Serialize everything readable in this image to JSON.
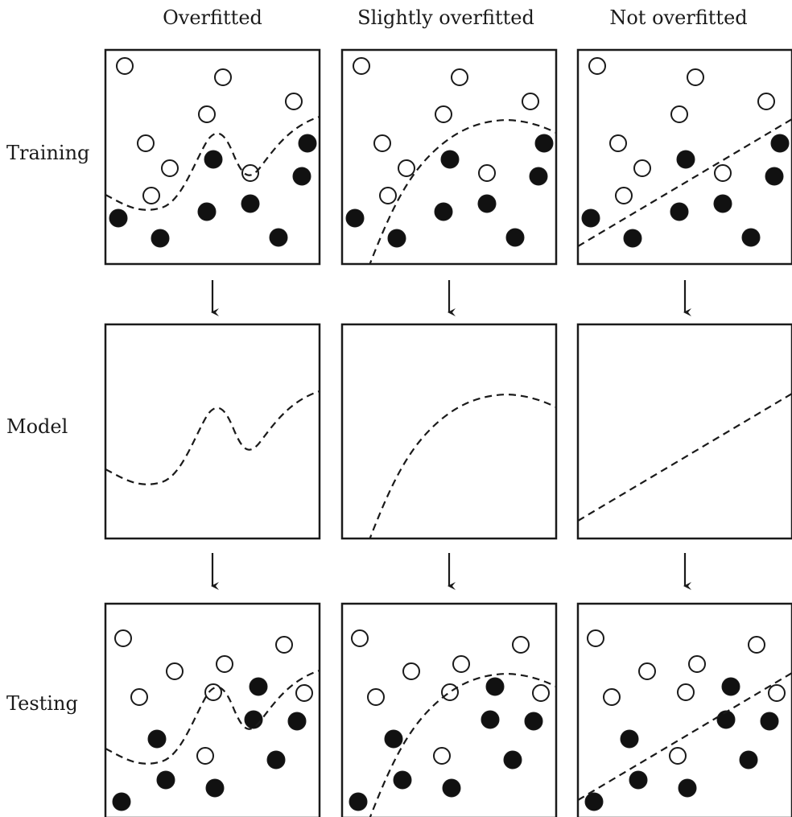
{
  "columns": [
    {
      "title": "Overfitted"
    },
    {
      "title": "Slightly overfitted"
    },
    {
      "title": "Not overfitted"
    }
  ],
  "rows": [
    {
      "label": "Training"
    },
    {
      "label": "Model"
    },
    {
      "label": "Testing"
    }
  ],
  "legend_semantics": {
    "open_circle": "class A sample",
    "filled_circle": "class B sample",
    "dashed_line": "decision boundary"
  },
  "colors": {
    "stroke": "#1a1a1a",
    "fill_filled": "#111111",
    "fill_open": "#ffffff"
  }
}
